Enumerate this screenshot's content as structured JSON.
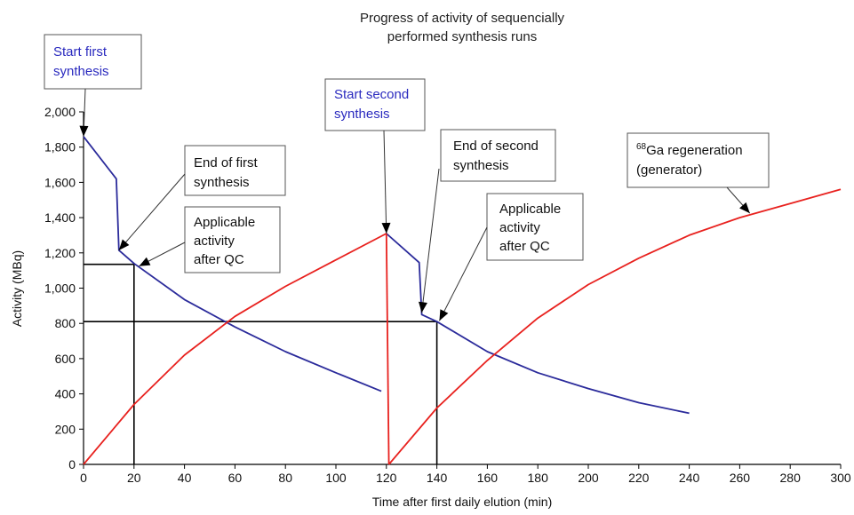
{
  "chart_data": {
    "type": "line",
    "title_lines": [
      "Progress of activity of sequencially",
      "performed synthesis runs"
    ],
    "xlabel": "Time after first daily elution (min)",
    "ylabel": "Activity (MBq)",
    "xlim": [
      0,
      300
    ],
    "ylim": [
      0,
      2000
    ],
    "x_ticks": [
      "0",
      "20",
      "40",
      "60",
      "80",
      "100",
      "120",
      "140",
      "160",
      "180",
      "200",
      "220",
      "240",
      "260",
      "280",
      "300"
    ],
    "y_ticks": [
      "0",
      "200",
      "400",
      "600",
      "800",
      "1,000",
      "1,200",
      "1,400",
      "1,600",
      "1,800",
      "2,000"
    ],
    "grid": false,
    "series": [
      {
        "color": "#2b2b9b",
        "segments": [
          [
            [
              0,
              1860
            ],
            [
              13,
              1620
            ],
            [
              14,
              1215
            ],
            [
              20,
              1140
            ],
            [
              40,
              935
            ],
            [
              60,
              780
            ],
            [
              80,
              640
            ],
            [
              100,
              520
            ],
            [
              118,
              415
            ]
          ],
          [
            [
              120,
              1310
            ],
            [
              133,
              1145
            ],
            [
              134,
              850
            ],
            [
              140,
              810
            ],
            [
              160,
              640
            ],
            [
              180,
              520
            ],
            [
              200,
              430
            ],
            [
              220,
              350
            ],
            [
              240,
              290
            ]
          ]
        ]
      },
      {
        "color": "#e8211e",
        "segments": [
          [
            [
              0,
              0
            ],
            [
              20,
              340
            ],
            [
              40,
              620
            ],
            [
              60,
              840
            ],
            [
              80,
              1010
            ],
            [
              100,
              1160
            ],
            [
              120,
              1310
            ]
          ],
          [
            [
              120,
              1310
            ],
            [
              121,
              0
            ]
          ],
          [
            [
              121,
              0
            ],
            [
              140,
              320
            ],
            [
              160,
              590
            ],
            [
              180,
              830
            ],
            [
              200,
              1020
            ],
            [
              220,
              1170
            ],
            [
              240,
              1300
            ],
            [
              260,
              1400
            ],
            [
              280,
              1480
            ],
            [
              300,
              1560
            ]
          ]
        ]
      }
    ],
    "reference_lines": [
      {
        "x": 20,
        "y": 1135
      },
      {
        "x": 140,
        "y": 810
      }
    ],
    "annotations": [
      {
        "id": "start-first",
        "lines": [
          "Start first",
          "synthesis"
        ],
        "color": "#2b2bbf",
        "target": [
          0,
          1860
        ]
      },
      {
        "id": "end-first",
        "lines": [
          "End of first",
          "synthesis"
        ],
        "color": "#111111",
        "target": [
          14,
          1215
        ]
      },
      {
        "id": "applicable-first",
        "lines": [
          "Applicable",
          "activity",
          "after QC"
        ],
        "color": "#111111",
        "target": [
          22,
          1125
        ]
      },
      {
        "id": "start-second",
        "lines": [
          "Start second",
          "synthesis"
        ],
        "color": "#2b2bbf",
        "target": [
          120,
          1310
        ]
      },
      {
        "id": "end-second",
        "lines": [
          "End of second",
          "synthesis"
        ],
        "color": "#111111",
        "target": [
          134,
          860
        ]
      },
      {
        "id": "applicable-second",
        "lines": [
          "Applicable",
          "activity",
          "after QC"
        ],
        "color": "#111111",
        "target": [
          141,
          815
        ]
      },
      {
        "id": "ga-regeneration",
        "sup": "68",
        "lines": [
          "Ga regeneration",
          "(generator)"
        ],
        "color": "#111111",
        "target": [
          264,
          1425
        ]
      }
    ]
  }
}
